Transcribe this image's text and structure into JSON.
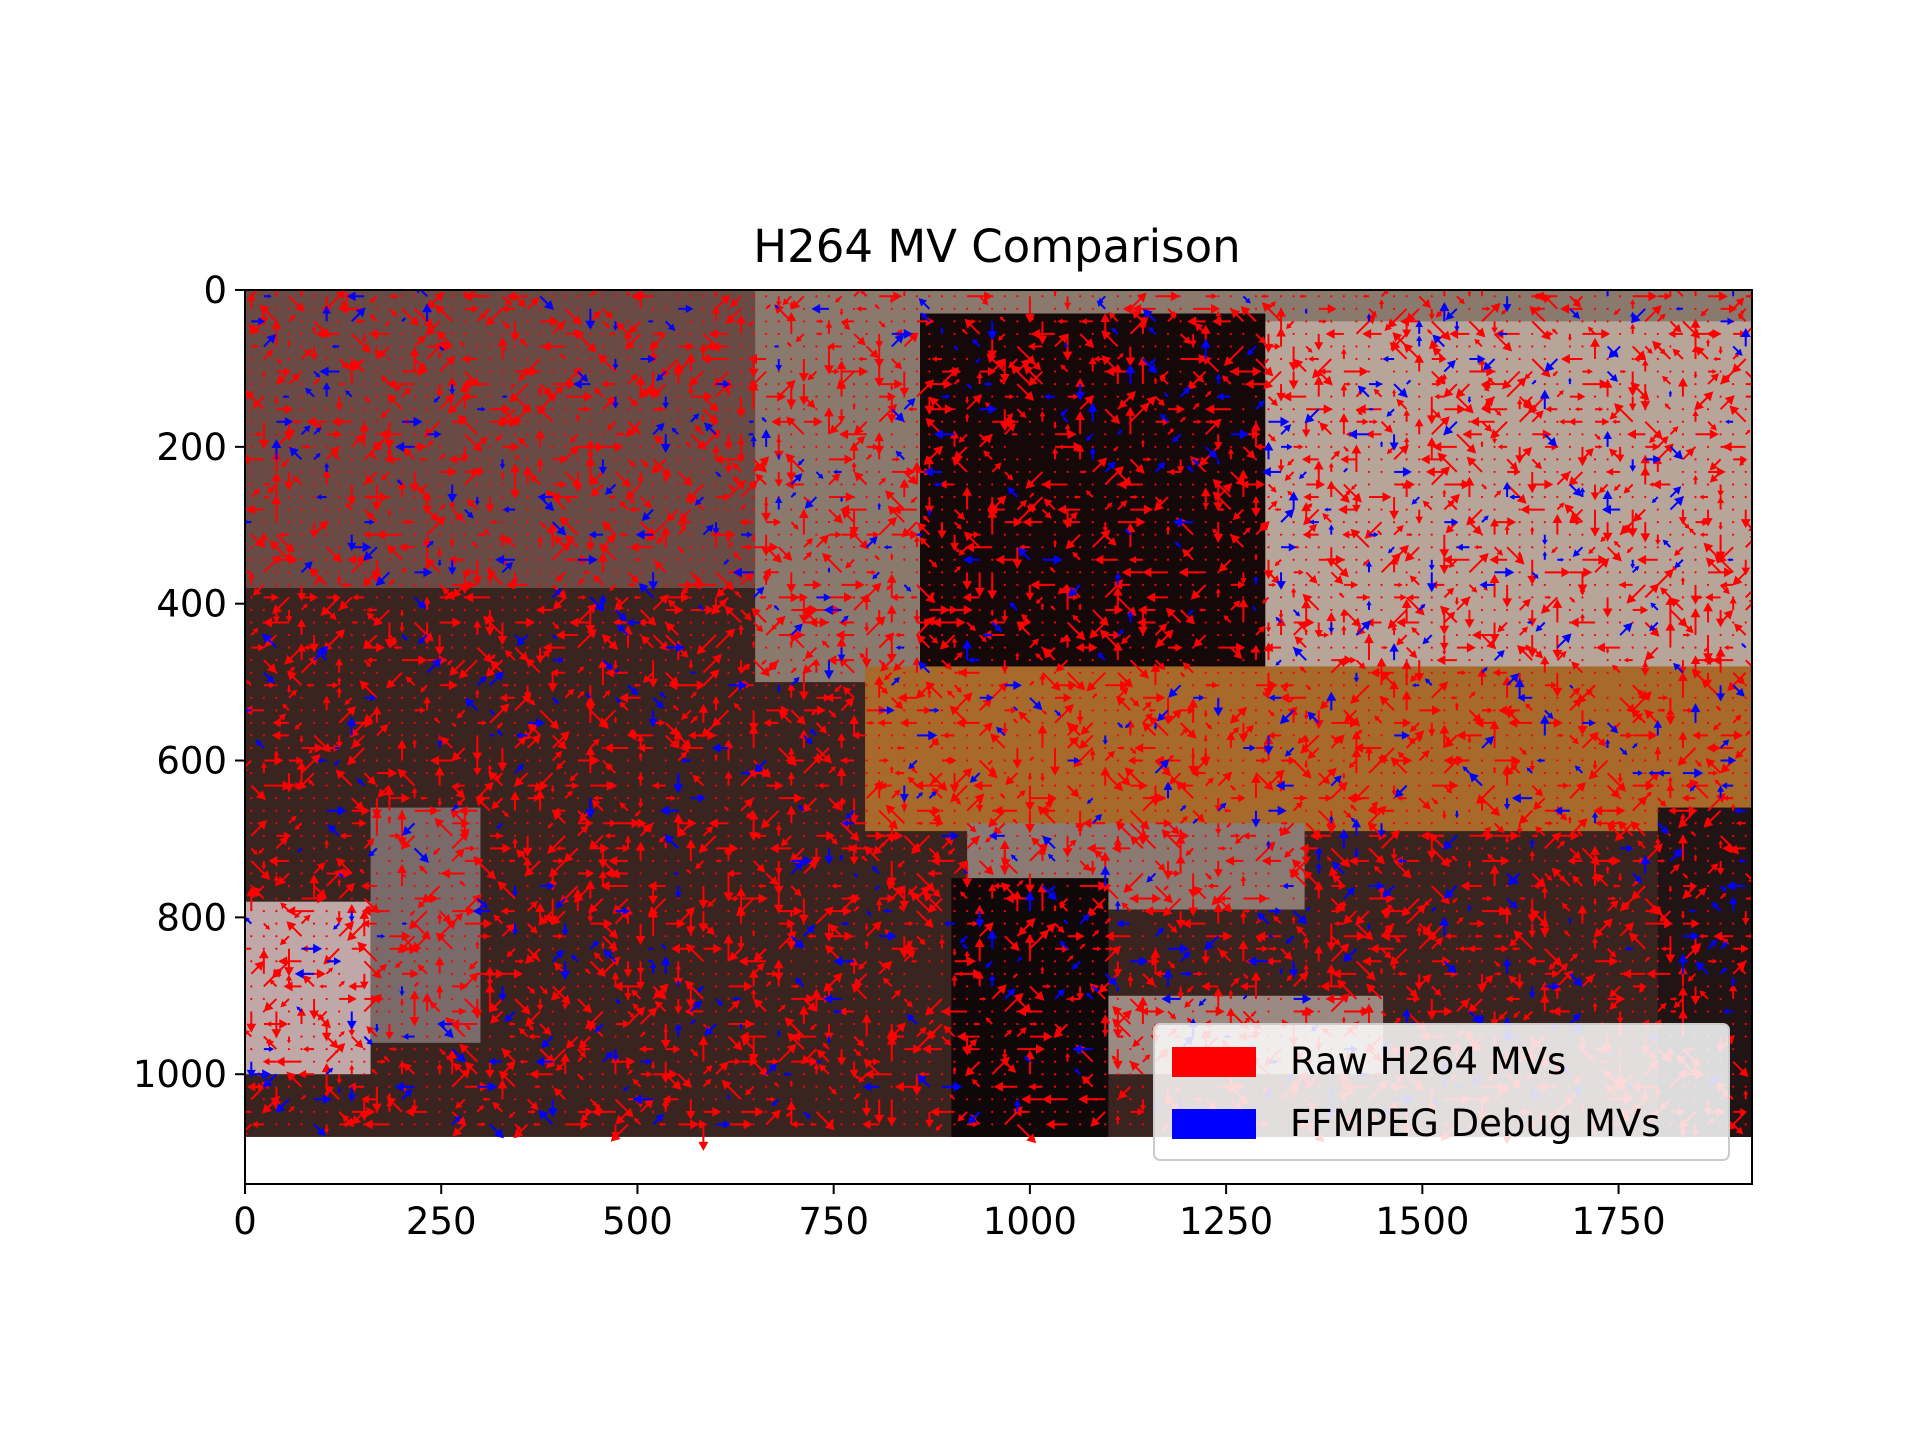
{
  "chart_data": {
    "type": "quiver",
    "title": "H264 MV Comparison",
    "xlabel": "",
    "ylabel": "",
    "xlim": [
      0,
      1920
    ],
    "ylim": [
      1140,
      0
    ],
    "y_inverted": true,
    "image_extent": {
      "x": [
        0,
        1920
      ],
      "y": [
        0,
        1080
      ]
    },
    "x_ticks": [
      0,
      250,
      500,
      750,
      1000,
      1250,
      1500,
      1750
    ],
    "y_ticks": [
      0,
      200,
      400,
      600,
      800,
      1000
    ],
    "grid": false,
    "legend_position": "lower-right",
    "series": [
      {
        "name": "Raw H264 MVs",
        "color": "#ff0000"
      },
      {
        "name": "FFMPEG Debug MVs",
        "color": "#0000ff"
      }
    ],
    "background_regions": [
      {
        "x": [
          0,
          1920
        ],
        "y": [
          0,
          1080
        ],
        "color": "#3a2420"
      },
      {
        "x": [
          0,
          750
        ],
        "y": [
          0,
          380
        ],
        "color": "#6a4a44"
      },
      {
        "x": [
          650,
          1920
        ],
        "y": [
          0,
          500
        ],
        "color": "#8a7a6e"
      },
      {
        "x": [
          860,
          1300
        ],
        "y": [
          30,
          520
        ],
        "color": "#140808"
      },
      {
        "x": [
          1300,
          1920
        ],
        "y": [
          40,
          500
        ],
        "color": "#b8a59a"
      },
      {
        "x": [
          790,
          1920
        ],
        "y": [
          480,
          690
        ],
        "color": "#a86a2a"
      },
      {
        "x": [
          920,
          1350
        ],
        "y": [
          680,
          790
        ],
        "color": "#8a7a72"
      },
      {
        "x": [
          1040,
          1450
        ],
        "y": [
          900,
          1000
        ],
        "color": "#9a8a82"
      },
      {
        "x": [
          0,
          160
        ],
        "y": [
          780,
          1000
        ],
        "color": "#c0a8a8"
      },
      {
        "x": [
          160,
          300
        ],
        "y": [
          660,
          960
        ],
        "color": "#7a6a6a"
      },
      {
        "x": [
          900,
          1100
        ],
        "y": [
          750,
          1080
        ],
        "color": "#100808"
      },
      {
        "x": [
          1800,
          1920
        ],
        "y": [
          660,
          1080
        ],
        "color": "#201414"
      }
    ]
  }
}
